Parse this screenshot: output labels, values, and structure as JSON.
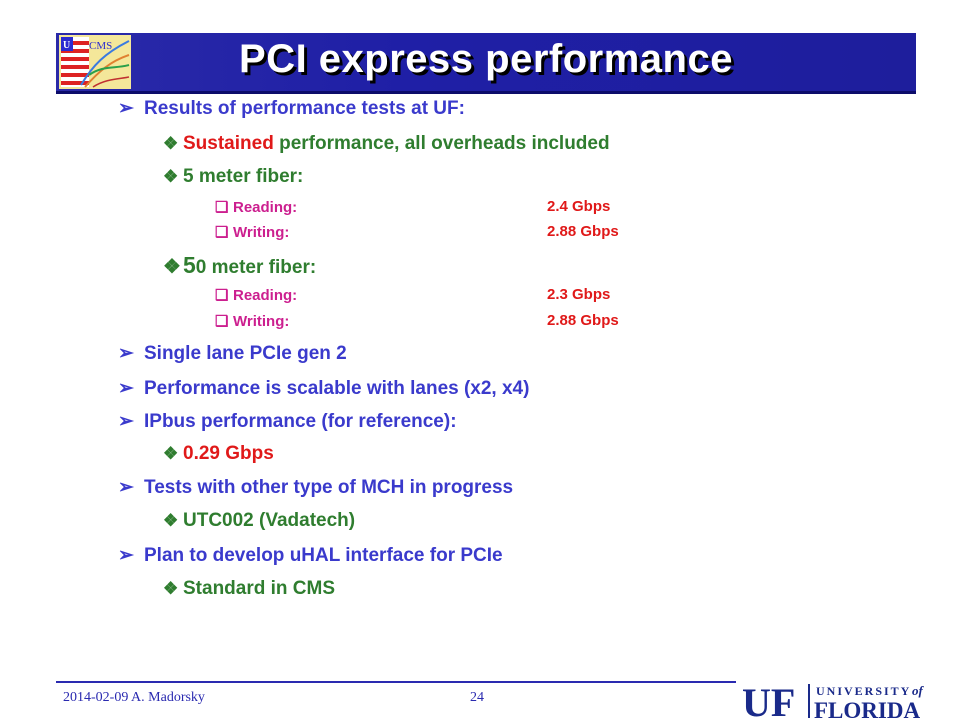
{
  "title": "PCI express performance",
  "bullets": {
    "results": "Results of performance tests at UF:",
    "sustained_word": "Sustained",
    "sustained_rest": " performance, all overheads included",
    "fiber5": "5 meter fiber:",
    "fiber5_reading_label": "Reading:",
    "fiber5_reading_value": "2.4 Gbps",
    "fiber5_writing_label": "Writing:",
    "fiber5_writing_value": "2.88 Gbps",
    "fiber50_big": "5",
    "fiber50_rest": "0 meter fiber:",
    "fiber50_reading_label": "Reading:",
    "fiber50_reading_value": "2.3 Gbps",
    "fiber50_writing_label": "Writing:",
    "fiber50_writing_value": "2.88 Gbps",
    "single_lane": "Single lane PCIe gen 2",
    "scalable": "Performance is scalable with lanes (x2, x4)",
    "ipbus": "IPbus performance (for reference):",
    "ipbus_value": "0.29 Gbps",
    "tests_mch": "Tests with other type of MCH in progress",
    "utc": "UTC002 (Vadatech)",
    "plan": "Plan to develop uHAL interface for PCIe",
    "standard": "Standard in CMS"
  },
  "footer": {
    "date_author": "2014-02-09  A. Madorsky",
    "page": "24",
    "logo_uf": "UF",
    "logo_university": "UNIVERSITY",
    "logo_of": "of",
    "logo_florida": "FLORIDA"
  },
  "colors": {
    "title_bar": "#1f1fa6",
    "level1": "#3a3acc",
    "level2": "#2f7d2f",
    "pink": "#cc1f8f",
    "red": "#e01919"
  }
}
